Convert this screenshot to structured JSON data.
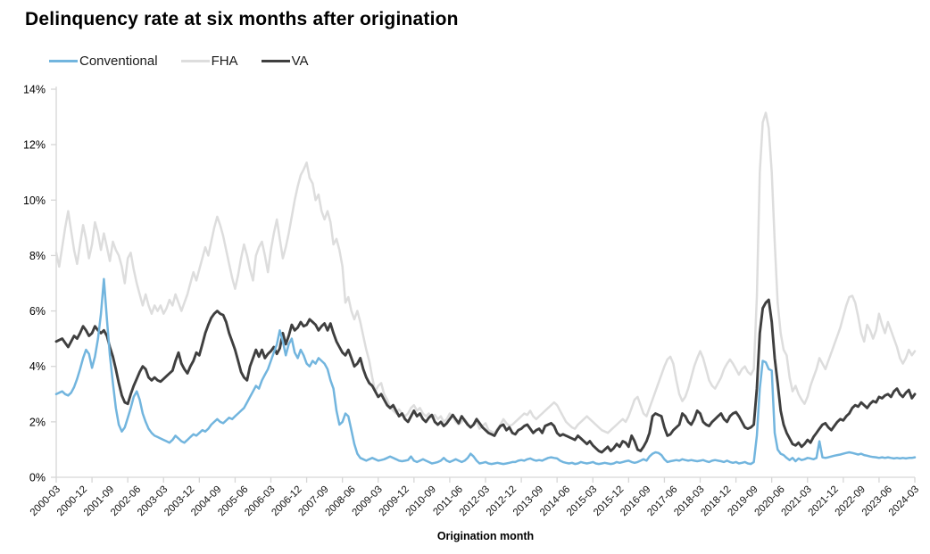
{
  "title": "Delinquency rate at six months after origination",
  "legend": {
    "position": "top-left",
    "items": [
      {
        "label": "Conventional",
        "color": "#72b5de",
        "thickness": 3
      },
      {
        "label": "FHA",
        "color": "#dddddd",
        "thickness": 3
      },
      {
        "label": "VA",
        "color": "#3f3f3f",
        "thickness": 3
      }
    ]
  },
  "chart_data": {
    "type": "line",
    "title": "Delinquency rate at six months after origination",
    "xlabel": "Origination month",
    "ylabel": "",
    "x_start": "2000-03",
    "x_end": "2024-03",
    "x_frequency": "monthly",
    "ylim": [
      0,
      14
    ],
    "y_tick_step_pct": 2,
    "y_tick_labels": [
      "0%",
      "2%",
      "4%",
      "6%",
      "8%",
      "10%",
      "12%",
      "14%"
    ],
    "x_tick_labels": [
      "2000-03",
      "2000-12",
      "2001-09",
      "2002-06",
      "2003-03",
      "2003-12",
      "2004-09",
      "2005-06",
      "2006-03",
      "2006-12",
      "2007-09",
      "2008-06",
      "2009-03",
      "2009-12",
      "2010-09",
      "2011-06",
      "2012-03",
      "2012-12",
      "2013-09",
      "2014-06",
      "2015-03",
      "2015-12",
      "2016-09",
      "2017-06",
      "2018-03",
      "2018-12",
      "2019-09",
      "2020-06",
      "2021-03",
      "2021-12",
      "2022-09",
      "2023-06",
      "2024-03"
    ],
    "x_tick_label_interval_months": 9,
    "x_minor_tick_interval_months": 12,
    "grid": false,
    "axis_color": "#d6d6d6",
    "legend_position": "top-left",
    "draw_order": [
      "FHA",
      "VA",
      "Conventional"
    ],
    "series": [
      {
        "name": "FHA",
        "color": "#dddddd",
        "width": 2.5,
        "values": [
          8.1,
          7.6,
          8.3,
          9.0,
          9.6,
          8.9,
          8.2,
          7.7,
          8.4,
          9.1,
          8.6,
          7.9,
          8.4,
          9.2,
          8.8,
          8.2,
          8.8,
          8.3,
          7.8,
          8.5,
          8.2,
          8.0,
          7.6,
          7.0,
          7.9,
          8.1,
          7.5,
          7.0,
          6.6,
          6.2,
          6.6,
          6.2,
          5.9,
          6.2,
          6.0,
          6.2,
          5.9,
          6.1,
          6.4,
          6.2,
          6.6,
          6.3,
          6.0,
          6.3,
          6.6,
          7.0,
          7.4,
          7.1,
          7.5,
          7.9,
          8.3,
          8.0,
          8.5,
          9.0,
          9.4,
          9.1,
          8.7,
          8.2,
          7.7,
          7.2,
          6.8,
          7.3,
          7.9,
          8.4,
          8.0,
          7.5,
          7.1,
          8.0,
          8.3,
          8.5,
          8.0,
          7.4,
          8.2,
          8.8,
          9.3,
          8.6,
          7.9,
          8.3,
          8.8,
          9.4,
          10.0,
          10.5,
          10.9,
          11.1,
          11.35,
          10.8,
          10.6,
          10.0,
          10.2,
          9.6,
          9.3,
          9.6,
          9.2,
          8.4,
          8.6,
          8.2,
          7.6,
          6.3,
          6.5,
          6.0,
          5.7,
          6.0,
          5.6,
          5.1,
          4.6,
          4.2,
          3.6,
          3.1,
          3.3,
          3.4,
          3.0,
          2.8,
          2.55,
          2.4,
          2.3,
          2.45,
          2.3,
          2.2,
          2.3,
          2.5,
          2.6,
          2.4,
          2.5,
          2.3,
          2.2,
          2.3,
          2.15,
          2.25,
          2.1,
          2.2,
          2.0,
          2.1,
          2.3,
          2.2,
          2.0,
          1.9,
          2.0,
          2.1,
          1.95,
          1.8,
          1.9,
          2.0,
          1.75,
          1.85,
          1.95,
          1.7,
          1.65,
          1.6,
          1.75,
          1.9,
          2.1,
          1.95,
          1.85,
          1.9,
          2.0,
          2.1,
          2.2,
          2.3,
          2.25,
          2.4,
          2.2,
          2.1,
          2.2,
          2.3,
          2.4,
          2.5,
          2.6,
          2.7,
          2.6,
          2.4,
          2.2,
          2.0,
          1.9,
          1.8,
          1.75,
          1.9,
          2.0,
          2.1,
          2.2,
          2.1,
          2.0,
          1.9,
          1.8,
          1.7,
          1.65,
          1.6,
          1.7,
          1.8,
          1.9,
          2.0,
          2.1,
          2.0,
          2.2,
          2.5,
          2.8,
          2.9,
          2.6,
          2.3,
          2.2,
          2.5,
          2.8,
          3.1,
          3.4,
          3.7,
          4.0,
          4.25,
          4.35,
          4.1,
          3.5,
          3.0,
          2.75,
          2.9,
          3.2,
          3.6,
          4.0,
          4.3,
          4.55,
          4.3,
          3.9,
          3.5,
          3.3,
          3.2,
          3.4,
          3.6,
          3.9,
          4.1,
          4.25,
          4.1,
          3.9,
          3.7,
          3.9,
          4.0,
          3.8,
          3.7,
          3.9,
          6.5,
          11.0,
          12.8,
          13.15,
          12.6,
          11.0,
          8.5,
          6.3,
          5.2,
          4.6,
          4.4,
          3.6,
          3.1,
          3.3,
          3.0,
          2.8,
          2.65,
          2.9,
          3.3,
          3.6,
          3.9,
          4.3,
          4.1,
          3.9,
          4.2,
          4.5,
          4.8,
          5.1,
          5.4,
          5.8,
          6.2,
          6.5,
          6.55,
          6.3,
          5.8,
          5.2,
          4.9,
          5.5,
          5.3,
          5.0,
          5.3,
          5.9,
          5.5,
          5.2,
          5.6,
          5.3,
          5.0,
          4.7,
          4.3,
          4.1,
          4.3,
          4.6,
          4.4,
          4.55
        ]
      },
      {
        "name": "VA",
        "color": "#3f3f3f",
        "width": 2.9,
        "values": [
          4.9,
          4.95,
          5.0,
          4.85,
          4.7,
          4.9,
          5.1,
          5.0,
          5.2,
          5.45,
          5.3,
          5.1,
          5.2,
          5.45,
          5.3,
          5.2,
          5.3,
          5.1,
          4.7,
          4.35,
          3.9,
          3.4,
          2.95,
          2.7,
          2.65,
          3.0,
          3.3,
          3.55,
          3.8,
          4.0,
          3.9,
          3.6,
          3.5,
          3.6,
          3.5,
          3.45,
          3.55,
          3.65,
          3.75,
          3.85,
          4.2,
          4.5,
          4.1,
          3.9,
          3.75,
          4.0,
          4.2,
          4.5,
          4.4,
          4.8,
          5.2,
          5.5,
          5.75,
          5.9,
          6.0,
          5.9,
          5.85,
          5.6,
          5.2,
          4.9,
          4.6,
          4.2,
          3.8,
          3.6,
          3.5,
          4.0,
          4.3,
          4.6,
          4.35,
          4.6,
          4.3,
          4.45,
          4.55,
          4.7,
          4.45,
          4.65,
          5.2,
          4.8,
          5.1,
          5.5,
          5.3,
          5.4,
          5.6,
          5.45,
          5.5,
          5.7,
          5.6,
          5.5,
          5.3,
          5.45,
          5.55,
          5.3,
          5.55,
          5.2,
          4.9,
          4.7,
          4.5,
          4.4,
          4.6,
          4.3,
          4.0,
          4.1,
          4.3,
          3.9,
          3.6,
          3.4,
          3.3,
          3.1,
          2.9,
          3.0,
          2.8,
          2.6,
          2.5,
          2.6,
          2.4,
          2.2,
          2.3,
          2.1,
          2.0,
          2.2,
          2.4,
          2.2,
          2.3,
          2.1,
          2.0,
          2.15,
          2.25,
          2.0,
          1.9,
          2.0,
          1.85,
          1.95,
          2.1,
          2.25,
          2.1,
          1.95,
          2.2,
          2.05,
          1.9,
          1.8,
          1.9,
          2.1,
          1.95,
          1.8,
          1.7,
          1.6,
          1.55,
          1.5,
          1.7,
          1.85,
          1.9,
          1.7,
          1.8,
          1.6,
          1.55,
          1.7,
          1.75,
          1.85,
          1.9,
          1.75,
          1.6,
          1.7,
          1.75,
          1.6,
          1.85,
          1.9,
          1.95,
          1.85,
          1.6,
          1.5,
          1.55,
          1.5,
          1.45,
          1.4,
          1.35,
          1.5,
          1.4,
          1.3,
          1.2,
          1.3,
          1.15,
          1.05,
          0.95,
          0.9,
          1.0,
          1.1,
          0.95,
          1.05,
          1.2,
          1.1,
          1.3,
          1.25,
          1.1,
          1.5,
          1.3,
          1.0,
          0.95,
          1.1,
          1.3,
          1.6,
          2.2,
          2.3,
          2.25,
          2.2,
          1.8,
          1.5,
          1.55,
          1.7,
          1.8,
          1.9,
          2.3,
          2.2,
          2.0,
          1.9,
          2.1,
          2.4,
          2.3,
          2.0,
          1.9,
          1.85,
          2.0,
          2.1,
          2.2,
          2.3,
          2.1,
          2.0,
          2.2,
          2.3,
          2.35,
          2.2,
          2.0,
          1.8,
          1.75,
          1.8,
          1.9,
          3.2,
          5.2,
          6.1,
          6.3,
          6.4,
          5.6,
          4.3,
          3.4,
          2.4,
          1.9,
          1.6,
          1.4,
          1.2,
          1.15,
          1.25,
          1.1,
          1.2,
          1.35,
          1.25,
          1.45,
          1.6,
          1.75,
          1.9,
          1.95,
          1.8,
          1.7,
          1.85,
          2.0,
          2.1,
          2.05,
          2.2,
          2.3,
          2.5,
          2.6,
          2.55,
          2.7,
          2.6,
          2.5,
          2.65,
          2.75,
          2.7,
          2.9,
          2.85,
          2.95,
          3.0,
          2.9,
          3.1,
          3.2,
          3.0,
          2.9,
          3.05,
          3.15,
          2.85,
          3.0
        ]
      },
      {
        "name": "Conventional",
        "color": "#72b5de",
        "width": 2.5,
        "values": [
          3.0,
          3.05,
          3.1,
          3.0,
          2.95,
          3.05,
          3.25,
          3.55,
          3.9,
          4.3,
          4.6,
          4.45,
          3.95,
          4.35,
          5.0,
          5.9,
          7.15,
          5.7,
          4.4,
          3.4,
          2.5,
          1.9,
          1.65,
          1.8,
          2.15,
          2.5,
          2.9,
          3.1,
          2.8,
          2.3,
          2.0,
          1.75,
          1.6,
          1.5,
          1.45,
          1.4,
          1.35,
          1.3,
          1.25,
          1.35,
          1.5,
          1.4,
          1.3,
          1.25,
          1.35,
          1.45,
          1.55,
          1.5,
          1.6,
          1.7,
          1.65,
          1.75,
          1.9,
          2.0,
          2.1,
          2.0,
          1.95,
          2.05,
          2.15,
          2.1,
          2.2,
          2.3,
          2.4,
          2.5,
          2.7,
          2.9,
          3.1,
          3.3,
          3.2,
          3.5,
          3.7,
          3.9,
          4.2,
          4.5,
          4.8,
          5.3,
          4.9,
          4.4,
          4.8,
          5.0,
          4.5,
          4.3,
          4.6,
          4.4,
          4.1,
          4.0,
          4.2,
          4.1,
          4.3,
          4.2,
          4.1,
          3.9,
          3.5,
          3.2,
          2.4,
          1.9,
          2.0,
          2.3,
          2.2,
          1.7,
          1.2,
          0.85,
          0.7,
          0.65,
          0.6,
          0.65,
          0.7,
          0.65,
          0.6,
          0.62,
          0.65,
          0.7,
          0.75,
          0.7,
          0.65,
          0.6,
          0.58,
          0.6,
          0.62,
          0.75,
          0.6,
          0.55,
          0.6,
          0.65,
          0.6,
          0.55,
          0.5,
          0.52,
          0.55,
          0.6,
          0.7,
          0.6,
          0.55,
          0.6,
          0.65,
          0.6,
          0.55,
          0.6,
          0.7,
          0.85,
          0.75,
          0.6,
          0.5,
          0.52,
          0.55,
          0.5,
          0.48,
          0.5,
          0.52,
          0.5,
          0.48,
          0.5,
          0.52,
          0.55,
          0.55,
          0.6,
          0.62,
          0.6,
          0.65,
          0.68,
          0.63,
          0.6,
          0.62,
          0.6,
          0.65,
          0.7,
          0.72,
          0.7,
          0.68,
          0.6,
          0.55,
          0.52,
          0.5,
          0.52,
          0.48,
          0.5,
          0.55,
          0.52,
          0.5,
          0.52,
          0.55,
          0.5,
          0.48,
          0.5,
          0.52,
          0.5,
          0.48,
          0.5,
          0.55,
          0.52,
          0.55,
          0.58,
          0.6,
          0.55,
          0.52,
          0.55,
          0.6,
          0.65,
          0.6,
          0.75,
          0.85,
          0.9,
          0.88,
          0.8,
          0.65,
          0.55,
          0.58,
          0.6,
          0.62,
          0.6,
          0.65,
          0.62,
          0.6,
          0.62,
          0.6,
          0.58,
          0.6,
          0.62,
          0.58,
          0.55,
          0.6,
          0.62,
          0.6,
          0.58,
          0.55,
          0.6,
          0.55,
          0.52,
          0.55,
          0.5,
          0.52,
          0.55,
          0.5,
          0.48,
          0.55,
          1.5,
          3.2,
          4.2,
          4.15,
          3.9,
          3.85,
          1.6,
          1.0,
          0.85,
          0.8,
          0.7,
          0.62,
          0.7,
          0.58,
          0.68,
          0.62,
          0.65,
          0.7,
          0.68,
          0.65,
          0.7,
          1.3,
          0.72,
          0.7,
          0.72,
          0.75,
          0.78,
          0.8,
          0.82,
          0.85,
          0.88,
          0.9,
          0.88,
          0.85,
          0.82,
          0.85,
          0.8,
          0.78,
          0.75,
          0.73,
          0.72,
          0.7,
          0.72,
          0.7,
          0.72,
          0.7,
          0.68,
          0.7,
          0.68,
          0.7,
          0.68,
          0.7,
          0.7,
          0.72
        ]
      }
    ]
  }
}
